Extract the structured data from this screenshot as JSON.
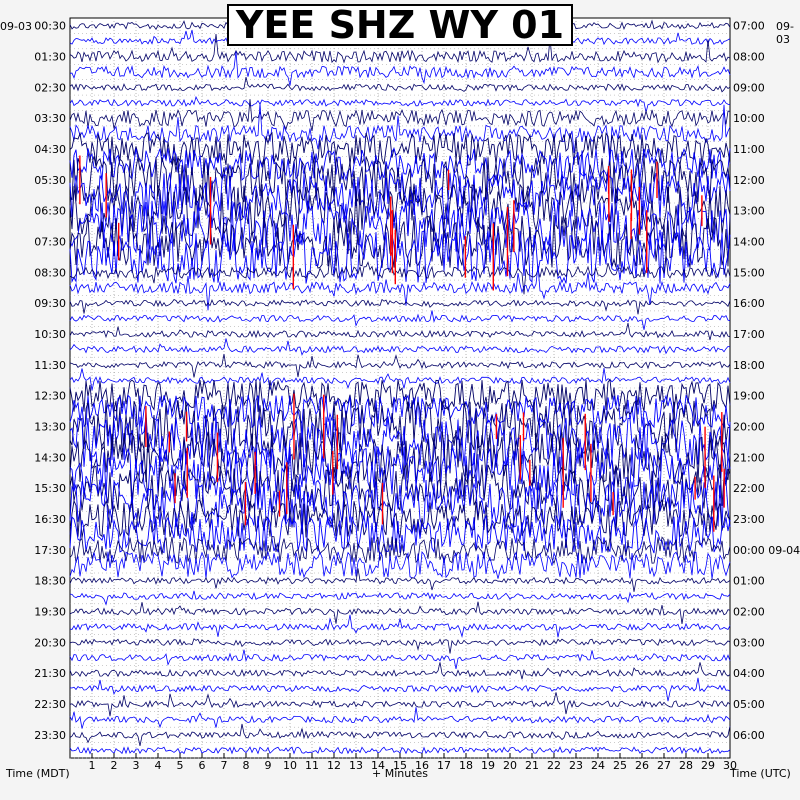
{
  "chart_data": {
    "type": "line",
    "title": "YEE SHZ WY 01",
    "start_date": "09-03",
    "end_date_utc": "09-04",
    "xlabel": "+ Minutes",
    "left_axis_label": "Time (MDT)",
    "right_axis_label": "Time (UTC)",
    "x_ticks": [
      "1",
      "2",
      "3",
      "4",
      "5",
      "6",
      "7",
      "8",
      "9",
      "10",
      "11",
      "12",
      "13",
      "14",
      "15",
      "16",
      "17",
      "18",
      "19",
      "20",
      "21",
      "22",
      "23",
      "24",
      "25",
      "26",
      "27",
      "28",
      "29",
      "30"
    ],
    "left_ticks": [
      "00:30",
      "01:30",
      "02:30",
      "03:30",
      "04:30",
      "05:30",
      "06:30",
      "07:30",
      "08:30",
      "09:30",
      "10:30",
      "11:30",
      "12:30",
      "13:30",
      "14:30",
      "15:30",
      "16:30",
      "17:30",
      "18:30",
      "19:30",
      "20:30",
      "21:30",
      "22:30",
      "23:30"
    ],
    "right_ticks": [
      "07:00",
      "08:00",
      "09:00",
      "10:00",
      "11:00",
      "12:00",
      "13:00",
      "14:00",
      "15:00",
      "16:00",
      "17:00",
      "18:00",
      "19:00",
      "20:00",
      "21:00",
      "22:00",
      "23:00",
      "00:00 09-04",
      "01:00",
      "02:00",
      "03:00",
      "04:00",
      "05:00",
      "06:00"
    ],
    "xlim": [
      0,
      30
    ],
    "traces_per_hour": 2,
    "trace_colors": [
      "#000066",
      "#0000ff"
    ],
    "clip_color": "#ff0000",
    "activity_by_hour": [
      1,
      2,
      1,
      3,
      6,
      9,
      10,
      10,
      2,
      1,
      1,
      1,
      6,
      10,
      10,
      9,
      7,
      5,
      1,
      1,
      1,
      1,
      1,
      1
    ],
    "grid": true
  }
}
